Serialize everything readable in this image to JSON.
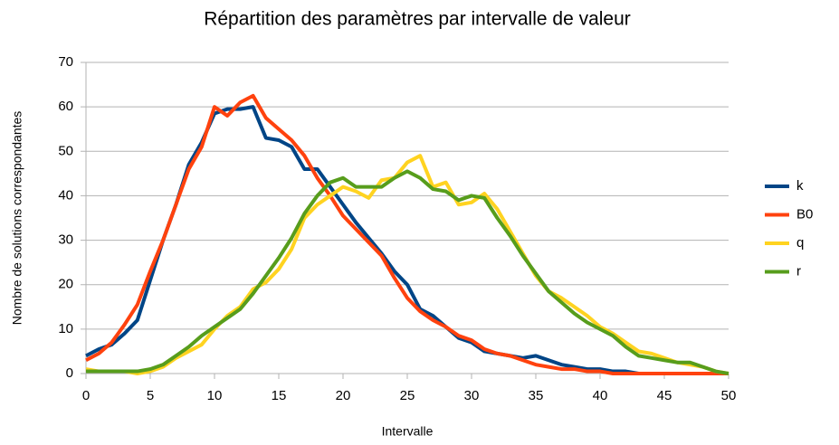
{
  "chart_data": {
    "type": "line",
    "title": "Répartition des paramètres par intervalle de valeur",
    "xlabel": "Intervalle",
    "ylabel": "Nombre de solutions correspondantes",
    "x": [
      0,
      1,
      2,
      3,
      4,
      5,
      6,
      7,
      8,
      9,
      10,
      11,
      12,
      13,
      14,
      15,
      16,
      17,
      18,
      19,
      20,
      21,
      22,
      23,
      24,
      25,
      26,
      27,
      28,
      29,
      30,
      31,
      32,
      33,
      34,
      35,
      36,
      37,
      38,
      39,
      40,
      41,
      42,
      43,
      44,
      45,
      46,
      47,
      48,
      49,
      50
    ],
    "xlim": [
      0,
      50
    ],
    "xticks": [
      0,
      5,
      10,
      15,
      20,
      25,
      30,
      35,
      40,
      45,
      50
    ],
    "ylim": [
      0,
      70
    ],
    "yticks": [
      0,
      10,
      20,
      30,
      40,
      50,
      60,
      70
    ],
    "grid": true,
    "legend": "right",
    "series": [
      {
        "name": "k",
        "color": "#004586",
        "values": [
          4,
          5.5,
          6.5,
          9,
          12,
          21,
          30,
          38,
          47,
          52,
          58.5,
          59.5,
          59.5,
          60,
          53,
          52.5,
          51,
          46,
          46,
          42,
          38,
          34,
          30.5,
          27,
          23,
          20,
          14.5,
          13,
          10.5,
          8,
          7,
          5,
          4.5,
          4,
          3.5,
          4,
          3,
          2,
          1.5,
          1,
          1,
          0.5,
          0.5,
          0,
          0,
          0,
          0,
          0,
          0,
          0,
          0
        ]
      },
      {
        "name": "B0",
        "color": "#ff420e",
        "values": [
          3,
          4.5,
          7,
          11,
          15.5,
          23,
          30,
          38,
          46,
          51,
          60,
          58,
          61,
          62.5,
          57.5,
          55,
          52.5,
          49,
          44,
          40,
          35.5,
          32.5,
          29.5,
          26.5,
          21.5,
          17,
          14,
          12,
          10.5,
          8.5,
          7.5,
          5.5,
          4.5,
          4,
          3,
          2,
          1.5,
          1,
          1,
          0.5,
          0.5,
          0,
          0,
          0,
          0,
          0,
          0,
          0,
          0,
          0,
          0
        ]
      },
      {
        "name": "q",
        "color": "#ffd320",
        "values": [
          1,
          0.5,
          0.5,
          0.5,
          0,
          0.5,
          1.5,
          3.5,
          5,
          6.5,
          10,
          13,
          15,
          19,
          20.5,
          23.5,
          28,
          35,
          38,
          40,
          42,
          41,
          39.5,
          43.5,
          44,
          47.5,
          49,
          42,
          43,
          38,
          38.5,
          40.5,
          37,
          32,
          27,
          22,
          18.5,
          17,
          15,
          13,
          10.5,
          9,
          7,
          5,
          4.5,
          3.5,
          2.5,
          2,
          1.5,
          0.5,
          0
        ]
      },
      {
        "name": "r",
        "color": "#579d1c",
        "values": [
          0.5,
          0.5,
          0.5,
          0.5,
          0.5,
          1,
          2,
          4,
          6,
          8.5,
          10.5,
          12.5,
          14.5,
          18,
          22,
          26,
          30.5,
          36,
          40,
          43,
          44,
          42,
          42,
          42,
          44,
          45.5,
          44,
          41.5,
          41,
          39,
          40,
          39.5,
          35,
          31,
          26.5,
          22.5,
          18.5,
          16,
          13.5,
          11.5,
          10,
          8.5,
          6,
          4,
          3.5,
          3,
          2.5,
          2.5,
          1.5,
          0.5,
          0
        ]
      }
    ]
  }
}
